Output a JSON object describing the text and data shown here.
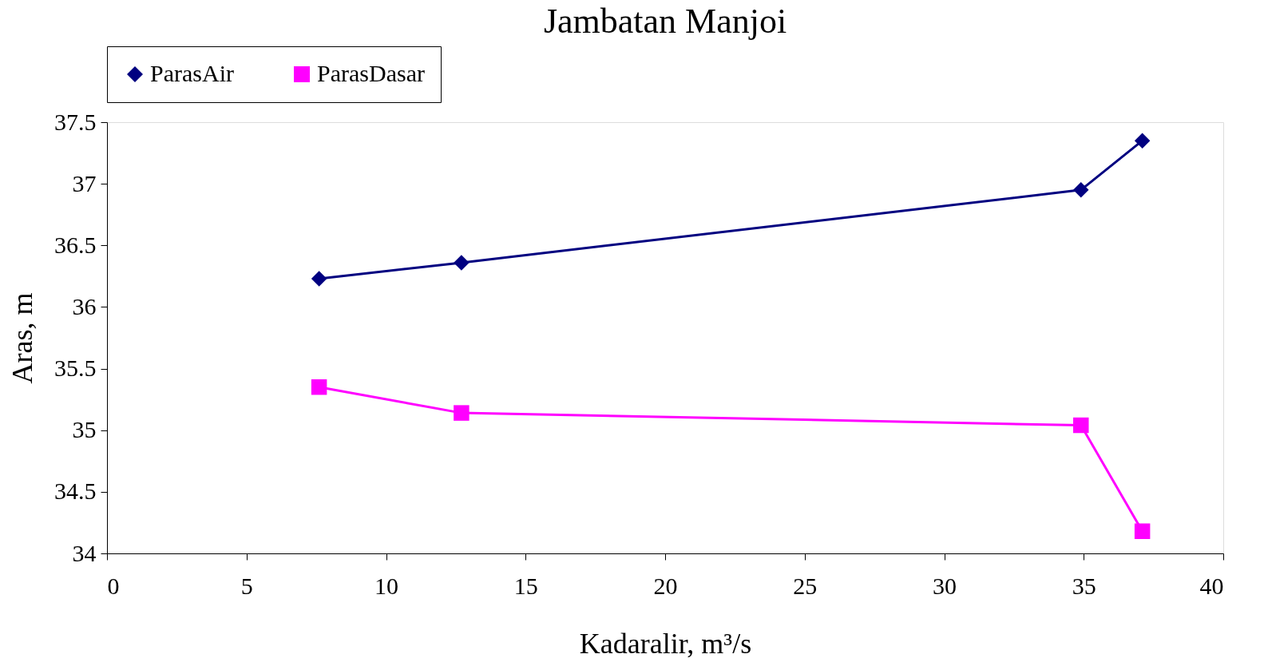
{
  "chart_data": {
    "type": "line",
    "title": "Jambatan Manjoi",
    "xlabel": "Kadaralir, m³/s",
    "ylabel": "Aras, m",
    "x": [
      7.6,
      12.7,
      34.9,
      37.1
    ],
    "series": [
      {
        "name": "ParasAir",
        "color": "#000080",
        "marker": "diamond",
        "values": [
          36.23,
          36.36,
          36.95,
          37.35
        ]
      },
      {
        "name": "ParasDasar",
        "color": "#ff00ff",
        "marker": "square",
        "values": [
          35.35,
          35.14,
          35.04,
          34.18
        ]
      }
    ],
    "xlim": [
      0,
      40
    ],
    "xticks": [
      0,
      5,
      10,
      15,
      20,
      25,
      30,
      35,
      40
    ],
    "ylim": [
      34,
      37.5
    ],
    "yticks": [
      34,
      34.5,
      35,
      35.5,
      36,
      36.5,
      37,
      37.5
    ],
    "grid": false,
    "legend": "top",
    "line_style": "solid"
  }
}
